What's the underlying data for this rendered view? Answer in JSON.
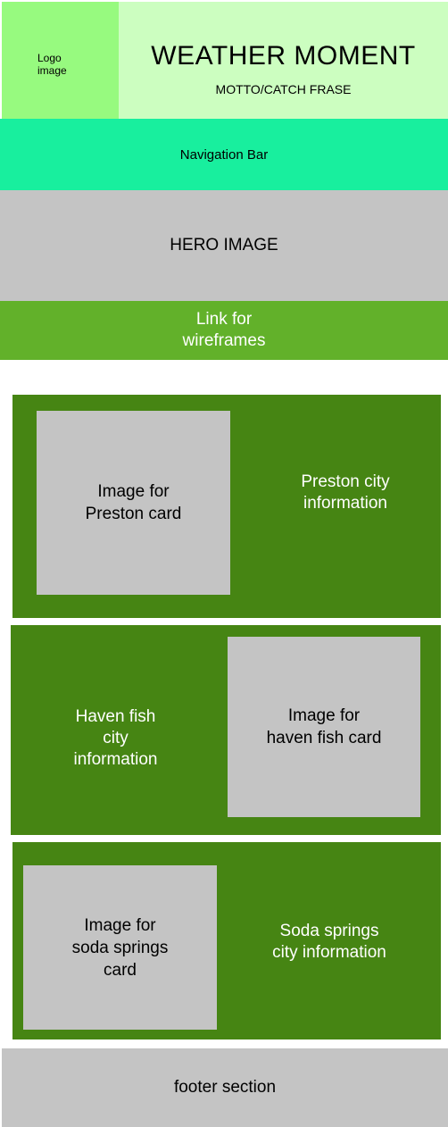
{
  "header": {
    "logo_line1": "Logo",
    "logo_line2": "image",
    "title": "WEATHER MOMENT",
    "motto": "MOTTO/CATCH FRASE"
  },
  "nav": {
    "label": "Navigation Bar"
  },
  "hero": {
    "label": "HERO IMAGE"
  },
  "link_band": {
    "line1": "Link for",
    "line2": "wireframes"
  },
  "cards": {
    "preston": {
      "image_line1": "Image for",
      "image_line2": "Preston card",
      "info_line1": "Preston city",
      "info_line2": "information"
    },
    "haven": {
      "image_line1": "Image for",
      "image_line2": "haven fish card",
      "info_line1": "Haven fish",
      "info_line2": "city",
      "info_line3": "information"
    },
    "soda": {
      "image_line1": "Image for",
      "image_line2": "soda springs",
      "image_line3": "card",
      "info_line1": "Soda springs",
      "info_line2": "city information"
    }
  },
  "footer": {
    "label": "footer section"
  },
  "colors": {
    "logo_bg": "#97fa7f",
    "header_bg": "#ccfec0",
    "nav_bg": "#18ef9e",
    "placeholder_gray": "#c4c4c4",
    "link_band_bg": "#62b12a",
    "card_bg": "#468513"
  }
}
